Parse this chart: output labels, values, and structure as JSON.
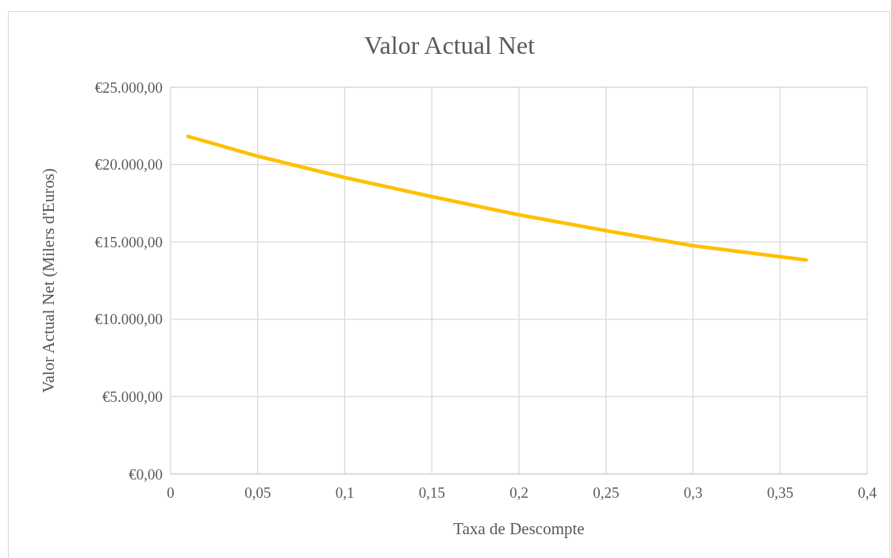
{
  "chart_data": {
    "type": "line",
    "title": "Valor Actual Net",
    "xlabel": "Taxa de Descompte",
    "ylabel": "Valor Actual Net (Milers d'Euros)",
    "series": [
      {
        "color": "#ffc000",
        "x": [
          0.01,
          0.05,
          0.1,
          0.15,
          0.2,
          0.25,
          0.3,
          0.365
        ],
        "values": [
          21820,
          20540,
          19160,
          17930,
          16750,
          15730,
          14750,
          13830
        ]
      }
    ],
    "xlim": [
      0,
      0.4
    ],
    "xticks": [
      0,
      {
        "value": 0.05,
        "label": "0,05"
      },
      {
        "value": 0.1,
        "label": "0,1"
      },
      {
        "value": 0.15,
        "label": "0,15"
      },
      {
        "value": 0.2,
        "label": "0,2"
      },
      {
        "value": 0.25,
        "label": "0,25"
      },
      {
        "value": 0.3,
        "label": "0,3"
      },
      {
        "value": 0.35,
        "label": "0,35"
      },
      {
        "value": 0.4,
        "label": "0,4"
      }
    ],
    "ylim": [
      0,
      25000
    ],
    "yticks": [
      {
        "value": 0,
        "label": "€0,00"
      },
      {
        "value": 5000,
        "label": "€5.000,00"
      },
      {
        "value": 10000,
        "label": "€10.000,00"
      },
      {
        "value": 15000,
        "label": "€15.000,00"
      },
      {
        "value": 20000,
        "label": "€20.000,00"
      },
      {
        "value": 25000,
        "label": "€25.000,00"
      }
    ],
    "grid": true,
    "marker": "none",
    "line_style": "solid"
  }
}
